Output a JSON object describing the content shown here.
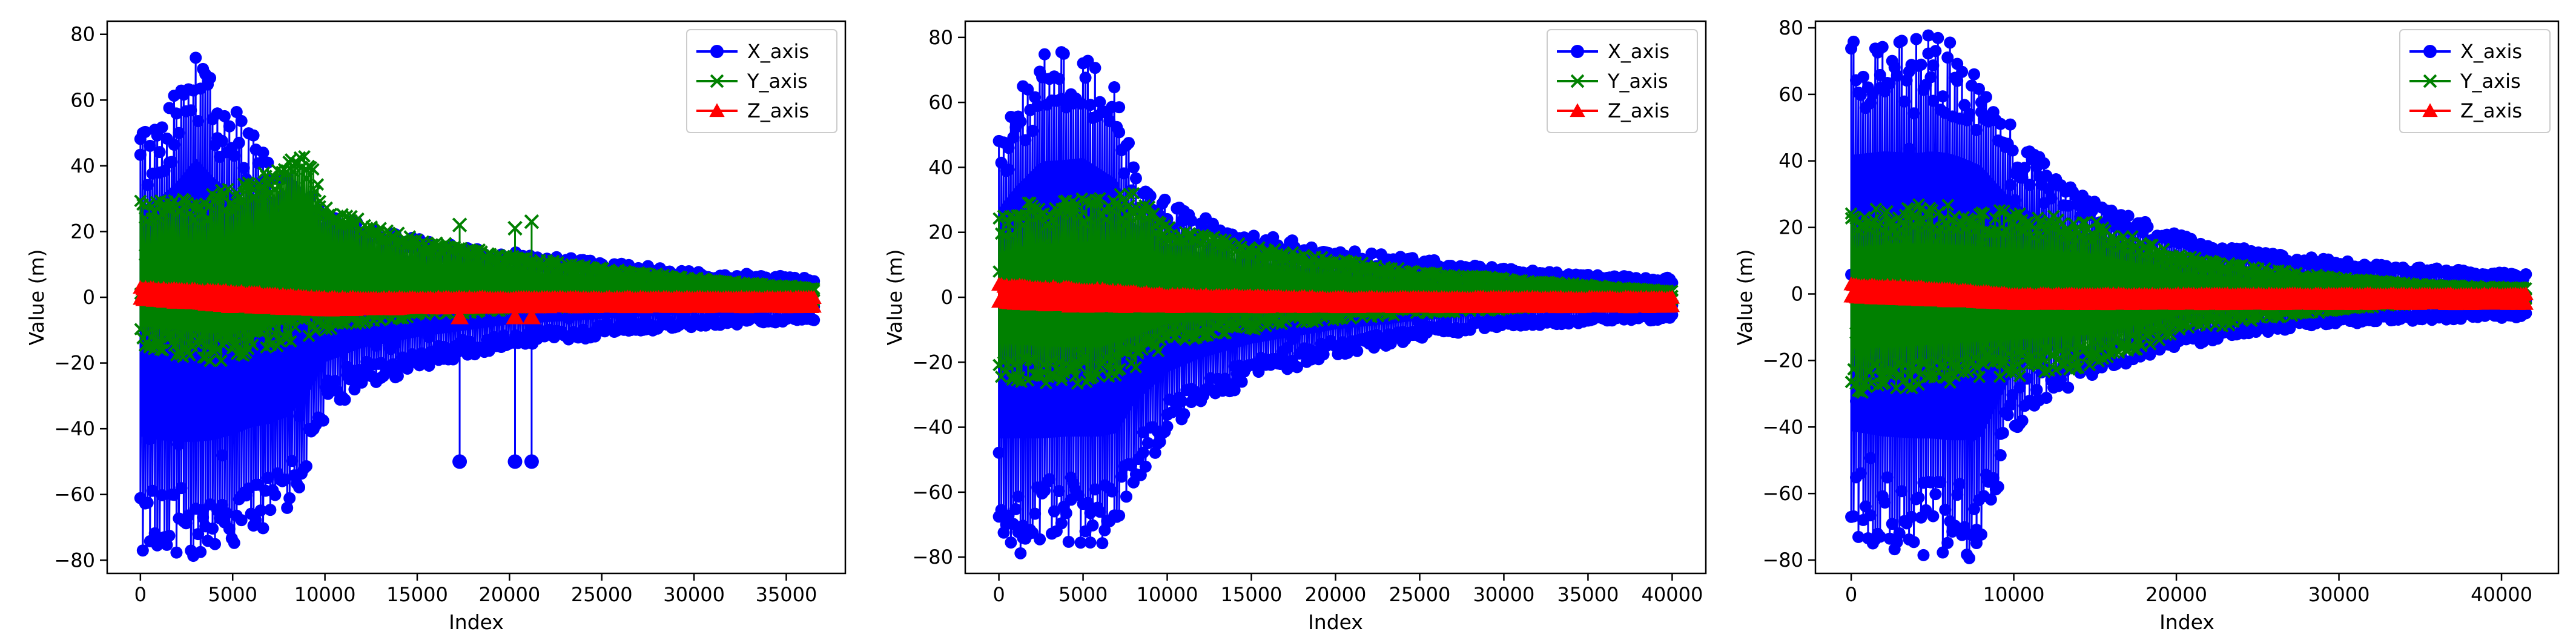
{
  "figure": {
    "chart_data": [
      {
        "type": "line",
        "title": "",
        "xlabel": "Index",
        "ylabel": "Value (m)",
        "xlim": [
          -1800,
          38200
        ],
        "ylim": [
          -84,
          84
        ],
        "xticks": [
          0,
          5000,
          10000,
          15000,
          20000,
          25000,
          30000,
          35000
        ],
        "yticks": [
          -80,
          -60,
          -40,
          -20,
          0,
          20,
          40,
          60,
          80
        ],
        "grid": false,
        "legend": "top-right",
        "n_points": 36500,
        "series": [
          {
            "name": "X_axis",
            "marker": "circle",
            "color": "#0000ff",
            "envelope_x": [
              0,
              1000,
              2000,
              3000,
              4000,
              5000,
              6000,
              7000,
              8000,
              9000,
              10000,
              12000,
              15000,
              20000,
              25000,
              30000,
              36500
            ],
            "envelope_max": [
              50,
              55,
              64,
              77,
              66,
              58,
              52,
              44,
              36,
              32,
              28,
              22,
              18,
              14,
              11,
              8,
              6
            ],
            "envelope_min": [
              -77,
              -79,
              -80,
              -80,
              -79,
              -76,
              -72,
              -70,
              -66,
              -55,
              -36,
              -28,
              -22,
              -15,
              -12,
              -9,
              -7
            ],
            "outliers": [
              {
                "x": 17300,
                "y": -50
              },
              {
                "x": 20300,
                "y": -50
              },
              {
                "x": 21200,
                "y": -50
              }
            ]
          },
          {
            "name": "Y_axis",
            "marker": "x",
            "color": "#008000",
            "envelope_x": [
              0,
              2000,
              4000,
              6000,
              8000,
              9000,
              10000,
              12000,
              15000,
              20000,
              25000,
              30000,
              36500
            ],
            "envelope_max": [
              30,
              30,
              32,
              36,
              42,
              47,
              28,
              24,
              18,
              13,
              9,
              6,
              3
            ],
            "envelope_min": [
              -16,
              -18,
              -20,
              -18,
              -14,
              -12,
              -10,
              -8,
              -6,
              -4,
              -3,
              -2,
              -1
            ],
            "outliers": [
              {
                "x": 17300,
                "y": 22
              },
              {
                "x": 20300,
                "y": 21
              },
              {
                "x": 21200,
                "y": 23
              }
            ]
          },
          {
            "name": "Z_axis",
            "marker": "triangle",
            "color": "#ff0000",
            "envelope_x": [
              0,
              5000,
              10000,
              20000,
              36500
            ],
            "envelope_max": [
              3,
              2,
              0,
              0,
              0
            ],
            "envelope_min": [
              -1,
              -3,
              -4,
              -3,
              -3
            ],
            "outliers": [
              {
                "x": 17300,
                "y": -6
              },
              {
                "x": 20300,
                "y": -6
              },
              {
                "x": 21200,
                "y": -6
              }
            ]
          }
        ]
      },
      {
        "type": "line",
        "title": "",
        "xlabel": "Index",
        "ylabel": "Value (m)",
        "xlim": [
          -2000,
          42000
        ],
        "ylim": [
          -85,
          85
        ],
        "xticks": [
          0,
          5000,
          10000,
          15000,
          20000,
          25000,
          30000,
          35000,
          40000
        ],
        "yticks": [
          -80,
          -60,
          -40,
          -20,
          0,
          20,
          40,
          60,
          80
        ],
        "grid": false,
        "legend": "top-right",
        "n_points": 40000,
        "series": [
          {
            "name": "X_axis",
            "marker": "circle",
            "color": "#0000ff",
            "envelope_x": [
              0,
              1000,
              2500,
              4000,
              5000,
              6000,
              7000,
              8000,
              10000,
              12000,
              15000,
              20000,
              25000,
              30000,
              35000,
              40000
            ],
            "envelope_max": [
              50,
              62,
              76,
              77,
              78,
              72,
              66,
              42,
              30,
              25,
              20,
              15,
              12,
              9,
              7,
              6
            ],
            "envelope_min": [
              -79,
              -79,
              -79,
              -78,
              -78,
              -78,
              -76,
              -60,
              -42,
              -34,
              -26,
              -18,
              -13,
              -9,
              -8,
              -7
            ],
            "outliers": []
          },
          {
            "name": "Y_axis",
            "marker": "x",
            "color": "#008000",
            "envelope_x": [
              0,
              2000,
              4000,
              6000,
              8000,
              10000,
              15000,
              20000,
              25000,
              30000,
              35000,
              40000
            ],
            "envelope_max": [
              25,
              30,
              30,
              32,
              33,
              22,
              16,
              12,
              8,
              6,
              4,
              2
            ],
            "envelope_min": [
              -26,
              -27,
              -28,
              -28,
              -22,
              -15,
              -10,
              -7,
              -5,
              -4,
              -2,
              -1
            ],
            "outliers": []
          },
          {
            "name": "Z_axis",
            "marker": "triangle",
            "color": "#ff0000",
            "envelope_x": [
              0,
              5000,
              10000,
              20000,
              30000,
              40000
            ],
            "envelope_max": [
              4,
              3,
              1,
              0,
              0,
              0
            ],
            "envelope_min": [
              -2,
              -3,
              -3,
              -3,
              -3,
              -3
            ],
            "outliers": []
          }
        ]
      },
      {
        "type": "line",
        "title": "",
        "xlabel": "Index",
        "ylabel": "Value (m)",
        "xlim": [
          -2200,
          43500
        ],
        "ylim": [
          -84,
          82
        ],
        "xticks": [
          0,
          10000,
          20000,
          30000,
          40000
        ],
        "yticks": [
          -80,
          -60,
          -40,
          -20,
          0,
          20,
          40,
          60,
          80
        ],
        "grid": false,
        "legend": "top-right",
        "n_points": 41500,
        "series": [
          {
            "name": "X_axis",
            "marker": "circle",
            "color": "#0000ff",
            "envelope_x": [
              0,
              2000,
              4000,
              5000,
              6000,
              7000,
              8000,
              9000,
              10000,
              12000,
              15000,
              20000,
              25000,
              30000,
              35000,
              41500
            ],
            "envelope_max": [
              76,
              78,
              77,
              78,
              77,
              74,
              70,
              60,
              50,
              40,
              28,
              18,
              13,
              10,
              8,
              6
            ],
            "envelope_min": [
              -75,
              -78,
              -79,
              -79,
              -80,
              -80,
              -78,
              -60,
              -42,
              -32,
              -24,
              -16,
              -12,
              -9,
              -8,
              -7
            ],
            "outliers": []
          },
          {
            "name": "Y_axis",
            "marker": "x",
            "color": "#008000",
            "envelope_x": [
              0,
              3000,
              6000,
              10000,
              15000,
              20000,
              25000,
              30000,
              35000,
              41500
            ],
            "envelope_max": [
              25,
              28,
              27,
              25,
              22,
              12,
              8,
              5,
              3,
              2
            ],
            "envelope_min": [
              -30,
              -29,
              -27,
              -25,
              -22,
              -12,
              -8,
              -5,
              -3,
              -2
            ],
            "outliers": []
          },
          {
            "name": "Z_axis",
            "marker": "triangle",
            "color": "#ff0000",
            "envelope_x": [
              0,
              5000,
              10000,
              20000,
              30000,
              41500
            ],
            "envelope_max": [
              3,
              2,
              0,
              0,
              0,
              0
            ],
            "envelope_min": [
              -1,
              -2,
              -3,
              -3,
              -3,
              -3
            ],
            "outliers": []
          }
        ]
      }
    ]
  }
}
